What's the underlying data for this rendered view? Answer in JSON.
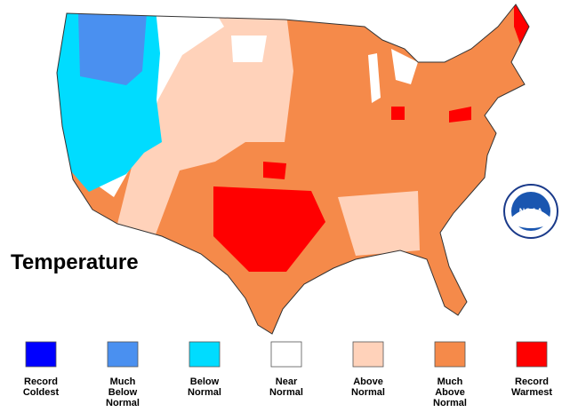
{
  "title": "Temperature",
  "logo": "NOAA",
  "legend": [
    {
      "label": [
        "Record",
        "Coldest"
      ],
      "color": "#0000ff"
    },
    {
      "label": [
        "Much",
        "Below",
        "Normal"
      ],
      "color": "#4a90f0"
    },
    {
      "label": [
        "Below",
        "Normal"
      ],
      "color": "#00dcff"
    },
    {
      "label": [
        "Near",
        "Normal"
      ],
      "color": "#ffffff"
    },
    {
      "label": [
        "Above",
        "Normal"
      ],
      "color": "#ffd2ba"
    },
    {
      "label": [
        "Much",
        "Above",
        "Normal"
      ],
      "color": "#f58a4a"
    },
    {
      "label": [
        "Record",
        "Warmest"
      ],
      "color": "#ff0000"
    }
  ]
}
